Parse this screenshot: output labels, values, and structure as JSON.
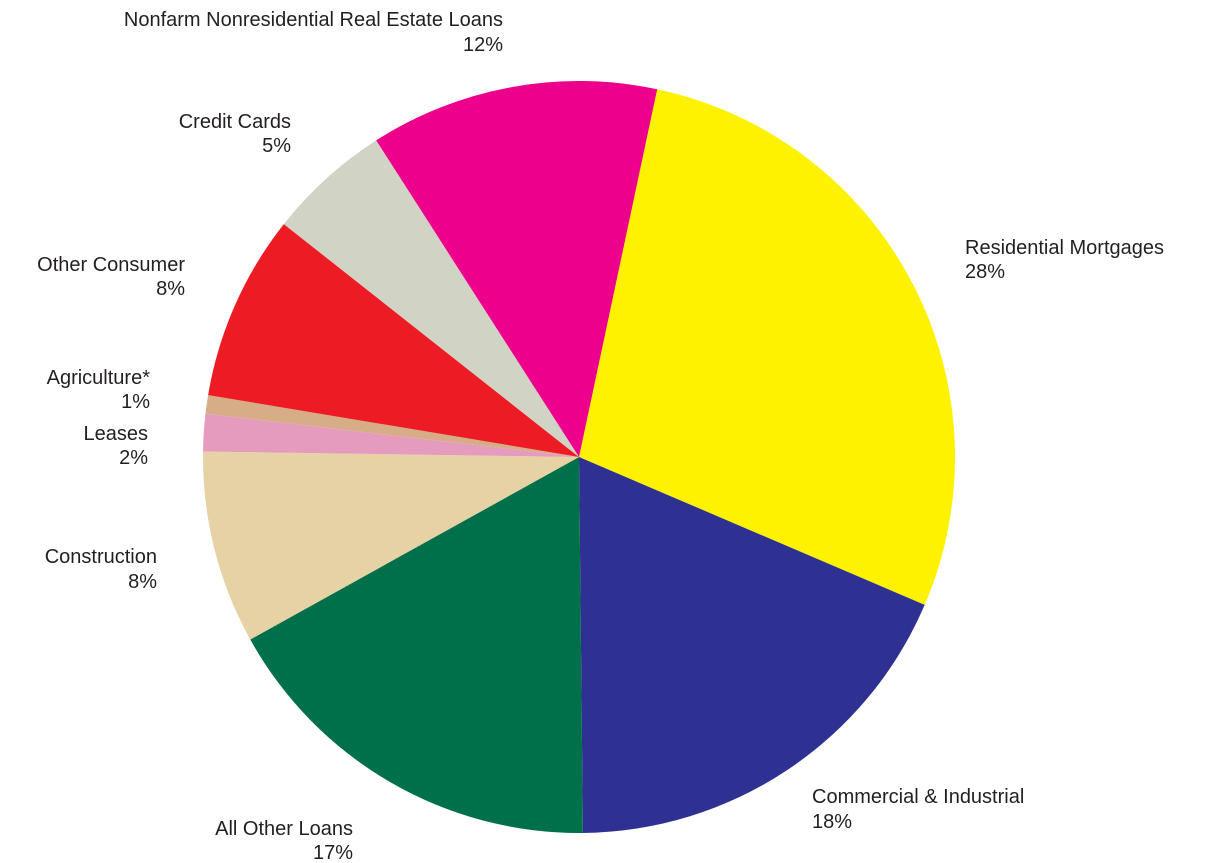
{
  "chart_data": {
    "type": "pie",
    "title": "",
    "slices": [
      {
        "label": "Residential Mortgages",
        "percent_label": "28%",
        "value": 28.1,
        "color": "#fff200"
      },
      {
        "label": "Commercial & Industrial",
        "percent_label": "18%",
        "value": 18.4,
        "color": "#2e3192"
      },
      {
        "label": "All Other Loans",
        "percent_label": "17%",
        "value": 17.1,
        "color": "#00704a"
      },
      {
        "label": "Construction",
        "percent_label": "8%",
        "value": 8.3,
        "color": "#e6d2a4"
      },
      {
        "label": "Leases",
        "percent_label": "2%",
        "value": 1.6,
        "color": "#e59bbd"
      },
      {
        "label": "Agriculture*",
        "percent_label": "1%",
        "value": 0.8,
        "color": "#d6ad87"
      },
      {
        "label": "Other Consumer",
        "percent_label": "8%",
        "value": 8.0,
        "color": "#ed1c24"
      },
      {
        "label": "Credit Cards",
        "percent_label": "5%",
        "value": 5.3,
        "color": "#d1d3c5"
      },
      {
        "label": "Nonfarm Nonresidential Real Estate Loans",
        "percent_label": "12%",
        "value": 12.4,
        "color": "#ec008c"
      }
    ],
    "start_angle_deg": 12,
    "direction": "clockwise"
  }
}
